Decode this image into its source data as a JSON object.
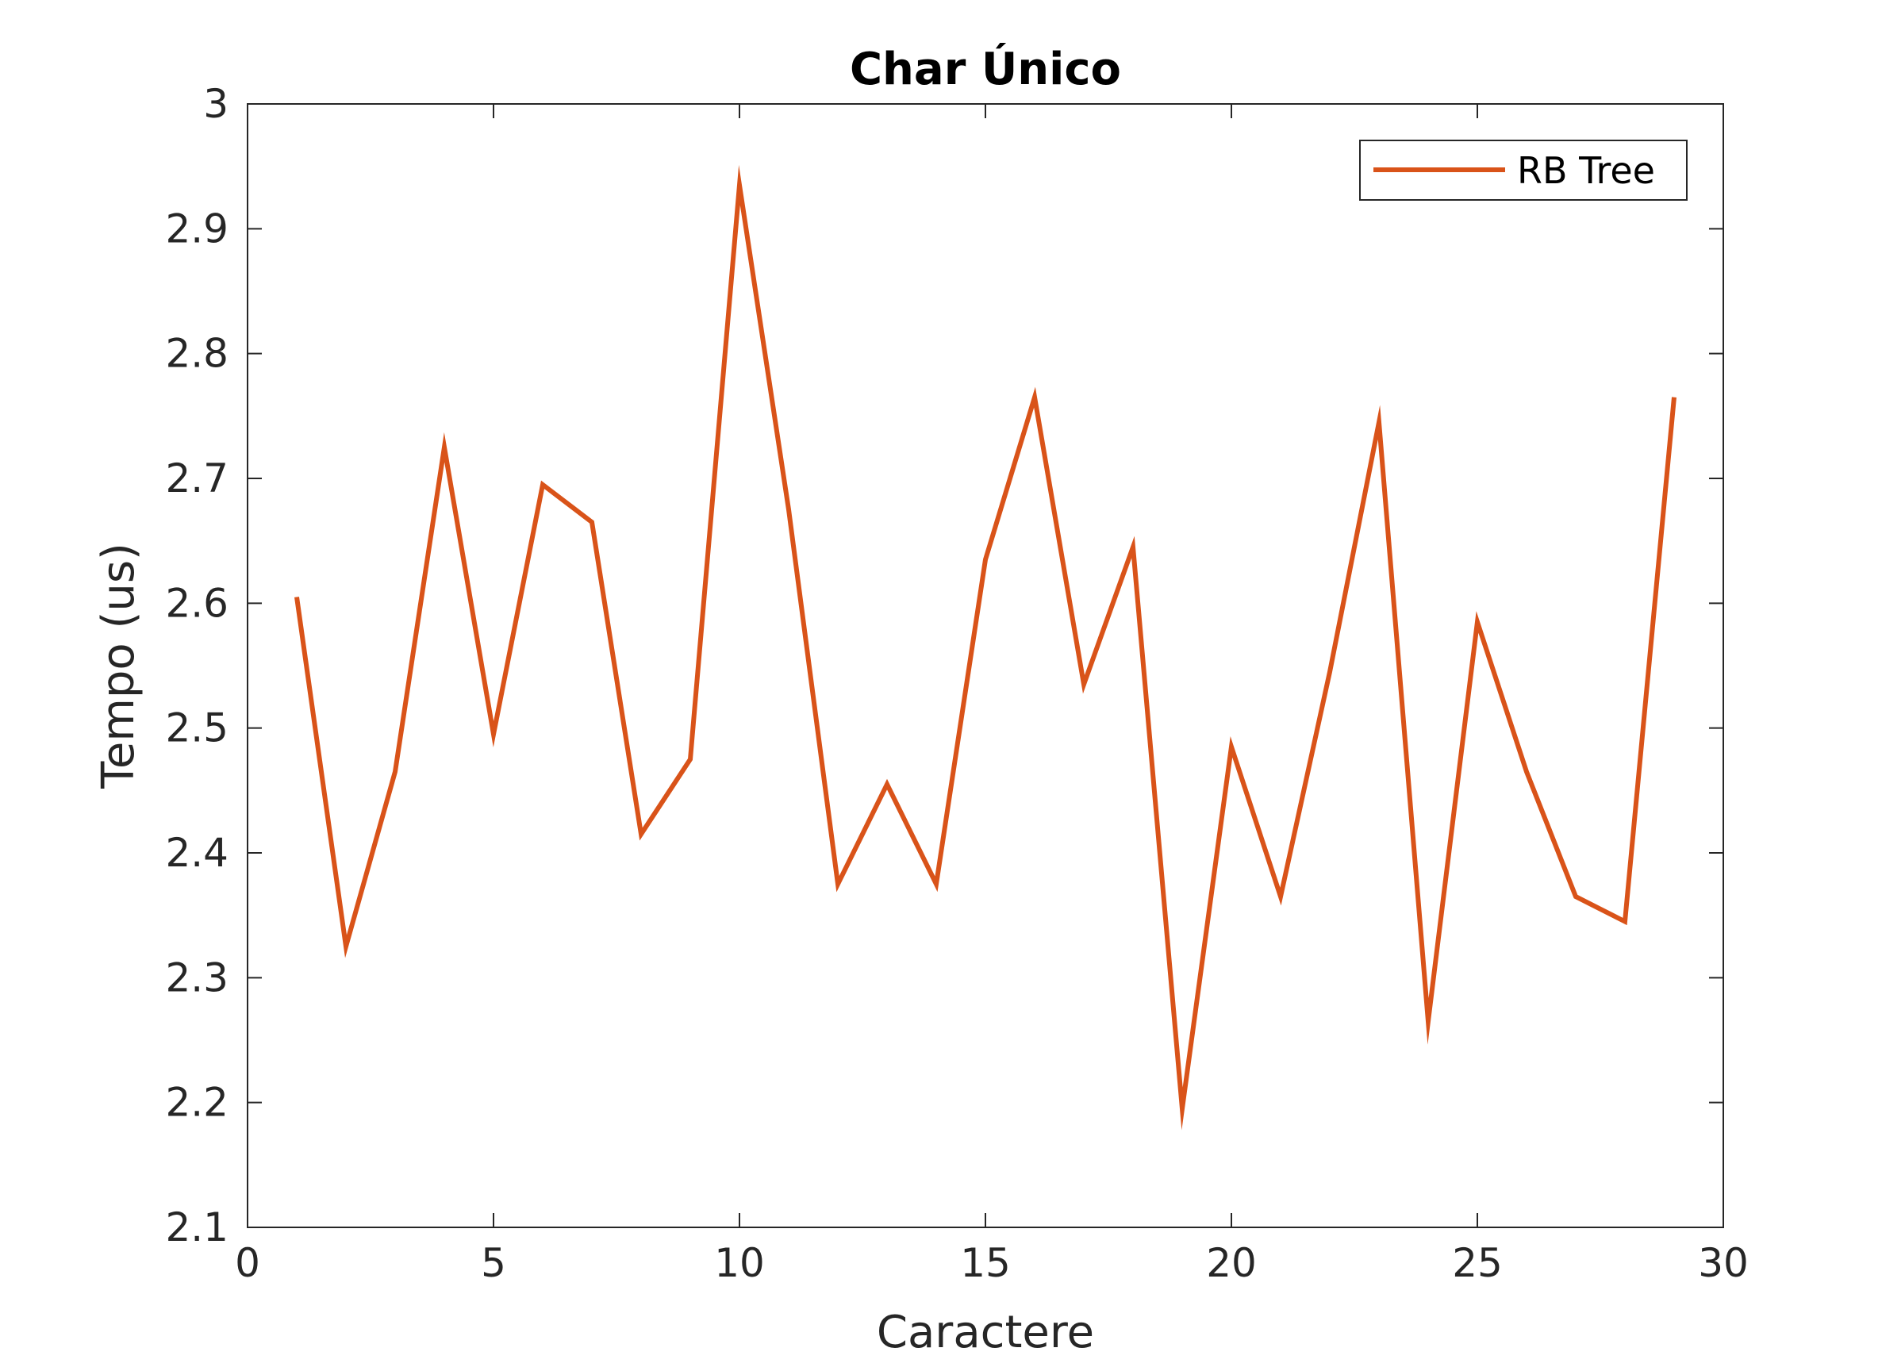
{
  "chart_data": {
    "type": "line",
    "title": "Char Único",
    "xlabel": "Caractere",
    "ylabel": "Tempo (us)",
    "xlim": [
      0,
      30
    ],
    "ylim": [
      2.1,
      3.0
    ],
    "xticks": [
      0,
      5,
      10,
      15,
      20,
      25,
      30
    ],
    "xtick_labels": [
      "0",
      "5",
      "10",
      "15",
      "20",
      "25",
      "30"
    ],
    "yticks": [
      2.1,
      2.2,
      2.3,
      2.4,
      2.5,
      2.6,
      2.7,
      2.8,
      2.9,
      3.0
    ],
    "ytick_labels": [
      "2.1",
      "2.2",
      "2.3",
      "2.4",
      "2.5",
      "2.6",
      "2.7",
      "2.8",
      "2.9",
      "3"
    ],
    "grid": false,
    "legend_position": "top-right",
    "series": [
      {
        "name": "RB Tree",
        "color": "#D95319",
        "x": [
          1,
          2,
          3,
          4,
          5,
          6,
          7,
          8,
          9,
          10,
          11,
          12,
          13,
          14,
          15,
          16,
          17,
          18,
          19,
          20,
          21,
          22,
          23,
          24,
          25,
          26,
          27,
          28,
          29
        ],
        "y": [
          2.605,
          2.325,
          2.465,
          2.725,
          2.495,
          2.695,
          2.665,
          2.415,
          2.475,
          2.935,
          2.675,
          2.375,
          2.455,
          2.375,
          2.635,
          2.765,
          2.535,
          2.645,
          2.195,
          2.485,
          2.365,
          2.545,
          2.745,
          2.265,
          2.585,
          2.465,
          2.365,
          2.345,
          2.765
        ]
      }
    ]
  }
}
